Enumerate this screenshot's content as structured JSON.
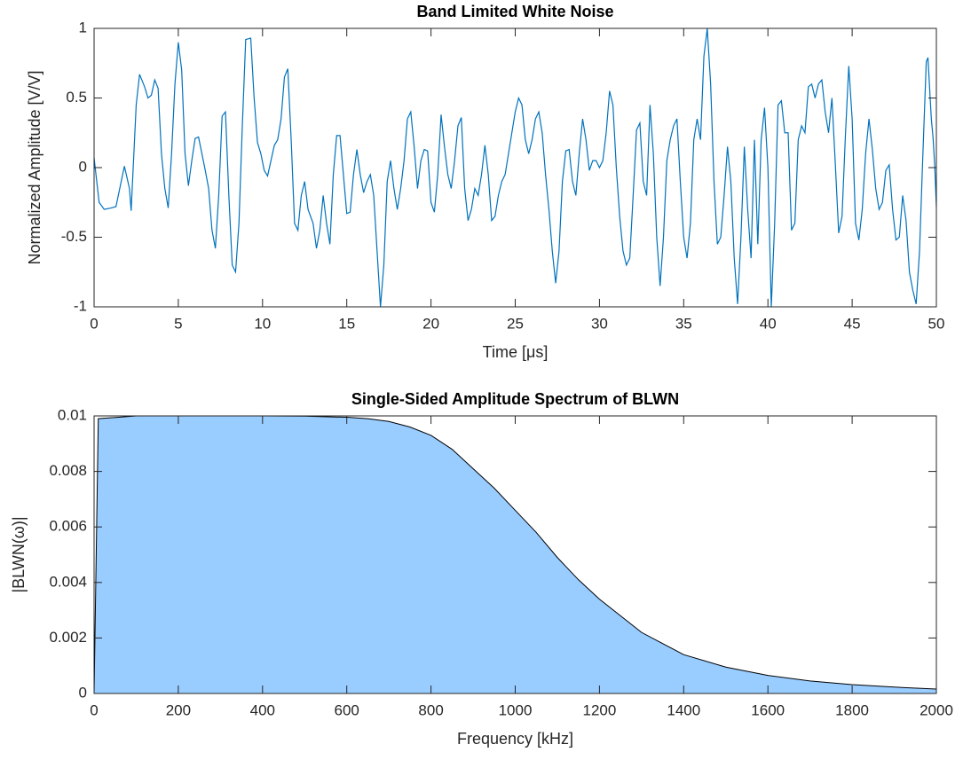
{
  "chart_data": [
    {
      "type": "line",
      "title": "Band Limited White Noise",
      "xlabel": "Time [μs]",
      "ylabel": "Normalized Amplitude [V/V]",
      "color": "#0072bd",
      "x": [
        0,
        0.3,
        0.6,
        1.0,
        1.3,
        1.8,
        2.1,
        2.2,
        2.5,
        2.7,
        3.0,
        3.2,
        3.4,
        3.6,
        3.8,
        4.0,
        4.2,
        4.4,
        4.6,
        4.8,
        5.0,
        5.2,
        5.4,
        5.6,
        5.8,
        6.0,
        6.2,
        6.4,
        6.6,
        6.8,
        7.0,
        7.2,
        7.4,
        7.6,
        7.8,
        8.0,
        8.2,
        8.4,
        8.6,
        8.8,
        9.0,
        9.3,
        9.5,
        9.7,
        9.9,
        10.1,
        10.3,
        10.5,
        10.7,
        10.9,
        11.1,
        11.3,
        11.5,
        11.7,
        11.9,
        12.1,
        12.3,
        12.5,
        12.7,
        13.0,
        13.2,
        13.4,
        13.6,
        13.8,
        14.0,
        14.2,
        14.4,
        14.6,
        14.8,
        15.0,
        15.2,
        15.4,
        15.6,
        15.8,
        16.0,
        16.2,
        16.4,
        16.6,
        16.8,
        17.0,
        17.2,
        17.4,
        17.6,
        17.8,
        18.0,
        18.2,
        18.4,
        18.6,
        18.8,
        19.0,
        19.2,
        19.4,
        19.6,
        19.8,
        20.0,
        20.2,
        20.4,
        20.6,
        20.8,
        21.0,
        21.2,
        21.4,
        21.6,
        21.8,
        22.0,
        22.2,
        22.4,
        22.6,
        22.8,
        23.0,
        23.2,
        23.4,
        23.6,
        23.8,
        24.0,
        24.2,
        24.4,
        24.6,
        24.8,
        25.0,
        25.2,
        25.4,
        25.6,
        25.8,
        26.0,
        26.2,
        26.4,
        26.6,
        26.8,
        27.0,
        27.2,
        27.4,
        27.6,
        27.8,
        28.0,
        28.2,
        28.4,
        28.6,
        28.8,
        29.0,
        29.2,
        29.4,
        29.6,
        29.8,
        30.0,
        30.2,
        30.4,
        30.6,
        30.8,
        31.0,
        31.2,
        31.4,
        31.6,
        31.8,
        32.0,
        32.2,
        32.4,
        32.6,
        32.8,
        33.0,
        33.2,
        33.4,
        33.6,
        33.8,
        34.0,
        34.2,
        34.4,
        34.6,
        34.8,
        35.0,
        35.2,
        35.4,
        35.6,
        35.8,
        36.0,
        36.2,
        36.4,
        36.6,
        36.8,
        37.0,
        37.2,
        37.4,
        37.6,
        37.8,
        38.0,
        38.2,
        38.4,
        38.6,
        38.8,
        39.0,
        39.2,
        39.4,
        39.6,
        39.8,
        40.0,
        40.2,
        40.4,
        40.6,
        40.8,
        41.0,
        41.2,
        41.4,
        41.6,
        41.8,
        42.0,
        42.2,
        42.4,
        42.6,
        42.8,
        43.0,
        43.2,
        43.4,
        43.6,
        43.8,
        44.0,
        44.2,
        44.4,
        44.6,
        44.8,
        45.0,
        45.2,
        45.4,
        45.6,
        45.8,
        46.0,
        46.2,
        46.4,
        46.6,
        46.8,
        47.0,
        47.2,
        47.4,
        47.6,
        47.8,
        48.0,
        48.2,
        48.4,
        48.6,
        48.8,
        49.0,
        49.2,
        49.4,
        49.5,
        49.7,
        49.8,
        49.9,
        50
      ],
      "values": [
        0.07,
        -0.25,
        -0.3,
        -0.29,
        -0.28,
        0.01,
        -0.15,
        -0.31,
        0.45,
        0.67,
        0.58,
        0.5,
        0.52,
        0.63,
        0.57,
        0.1,
        -0.15,
        -0.29,
        0.1,
        0.6,
        0.9,
        0.7,
        0.1,
        -0.13,
        0.05,
        0.21,
        0.22,
        0.1,
        -0.02,
        -0.15,
        -0.45,
        -0.58,
        -0.2,
        0.37,
        0.4,
        -0.2,
        -0.7,
        -0.75,
        -0.4,
        0.3,
        0.92,
        0.93,
        0.5,
        0.18,
        0.1,
        -0.02,
        -0.06,
        0.05,
        0.16,
        0.2,
        0.35,
        0.65,
        0.71,
        0.2,
        -0.4,
        -0.45,
        -0.2,
        -0.1,
        -0.3,
        -0.4,
        -0.58,
        -0.45,
        -0.2,
        -0.4,
        -0.55,
        -0.05,
        0.23,
        0.23,
        -0.05,
        -0.33,
        -0.32,
        -0.05,
        0.13,
        -0.05,
        -0.18,
        -0.1,
        -0.05,
        -0.2,
        -0.6,
        -1.0,
        -0.7,
        -0.1,
        0.05,
        -0.15,
        -0.3,
        -0.15,
        0.05,
        0.35,
        0.4,
        0.15,
        -0.15,
        0.05,
        0.13,
        0.12,
        -0.25,
        -0.32,
        -0.05,
        0.38,
        0.15,
        -0.05,
        -0.15,
        0.05,
        0.3,
        0.36,
        -0.15,
        -0.38,
        -0.3,
        -0.15,
        -0.2,
        -0.05,
        0.16,
        -0.05,
        -0.38,
        -0.35,
        -0.2,
        -0.1,
        -0.05,
        0.1,
        0.25,
        0.4,
        0.5,
        0.45,
        0.2,
        0.1,
        0.2,
        0.35,
        0.4,
        0.25,
        -0.05,
        -0.3,
        -0.6,
        -0.83,
        -0.6,
        -0.1,
        0.12,
        0.13,
        -0.1,
        -0.2,
        0.1,
        0.35,
        0.2,
        -0.02,
        0.05,
        0.05,
        0.0,
        0.05,
        0.25,
        0.55,
        0.45,
        0.0,
        -0.35,
        -0.6,
        -0.7,
        -0.65,
        -0.2,
        0.27,
        0.32,
        -0.1,
        -0.2,
        0.45,
        0.1,
        -0.5,
        -0.85,
        -0.5,
        0.05,
        0.2,
        0.3,
        0.35,
        -0.1,
        -0.5,
        -0.65,
        -0.4,
        0.2,
        0.35,
        0.2,
        0.8,
        1.0,
        0.6,
        -0.1,
        -0.55,
        -0.5,
        -0.2,
        0.15,
        -0.1,
        -0.65,
        -0.98,
        -0.5,
        0.15,
        -0.3,
        -0.65,
        0.2,
        -0.55,
        0.2,
        0.43,
        0.0,
        -1.0,
        -0.4,
        0.45,
        0.48,
        0.25,
        0.25,
        -0.45,
        -0.4,
        0.2,
        0.3,
        0.25,
        0.58,
        0.6,
        0.5,
        0.6,
        0.63,
        0.4,
        0.25,
        0.5,
        0.03,
        -0.47,
        -0.35,
        0.23,
        0.73,
        0.35,
        -0.4,
        -0.52,
        -0.3,
        0.1,
        0.35,
        0.13,
        -0.15,
        -0.3,
        -0.25,
        -0.02,
        0.02,
        -0.3,
        -0.52,
        -0.5,
        -0.2,
        -0.38,
        -0.75,
        -0.88,
        -0.98,
        -0.6,
        0.1,
        0.76,
        0.79,
        0.35,
        0.22,
        0.02,
        -0.28
      ],
      "xlim": [
        0,
        50
      ],
      "xticks": [
        0,
        5,
        10,
        15,
        20,
        25,
        30,
        35,
        40,
        45,
        50
      ],
      "ylim": [
        -1,
        1
      ],
      "yticks": [
        -1,
        -0.5,
        0,
        0.5,
        1
      ]
    },
    {
      "type": "area",
      "title": "Single-Sided Amplitude Spectrum of BLWN",
      "xlabel": "Frequency [kHz]",
      "ylabel": "|BLWN(ω)|",
      "color": "#99ccff",
      "edge_color": "#000000",
      "x": [
        0,
        10,
        100,
        200,
        300,
        400,
        500,
        600,
        650,
        700,
        750,
        800,
        850,
        900,
        950,
        1000,
        1050,
        1100,
        1150,
        1200,
        1250,
        1300,
        1350,
        1400,
        1500,
        1600,
        1700,
        1800,
        1900,
        2000
      ],
      "values": [
        0,
        0.0099,
        0.01,
        0.01,
        0.01,
        0.01,
        0.00999,
        0.00995,
        0.0099,
        0.0098,
        0.0096,
        0.0093,
        0.0088,
        0.0081,
        0.0074,
        0.0066,
        0.0058,
        0.0049,
        0.0041,
        0.0034,
        0.0028,
        0.0022,
        0.0018,
        0.0014,
        0.00095,
        0.00065,
        0.00045,
        0.00032,
        0.00023,
        0.00016
      ],
      "xlim": [
        0,
        2000
      ],
      "xticks": [
        0,
        200,
        400,
        600,
        800,
        1000,
        1200,
        1400,
        1600,
        1800,
        2000
      ],
      "ylim": [
        0,
        0.01
      ],
      "yticks": [
        0,
        0.002,
        0.004,
        0.006,
        0.008,
        0.01
      ]
    }
  ]
}
